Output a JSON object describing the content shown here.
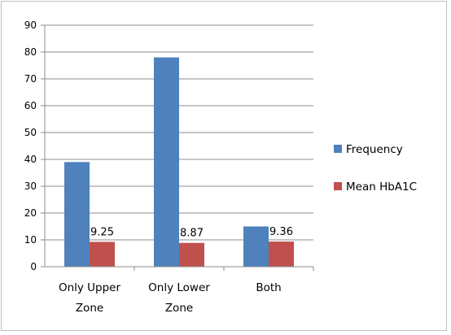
{
  "chart_data": {
    "type": "bar",
    "categories": [
      "Only Upper Zone",
      "Only Lower Zone",
      "Both"
    ],
    "category_lines": [
      [
        "Only Upper",
        "Zone"
      ],
      [
        "Only Lower",
        "Zone"
      ],
      [
        "Both"
      ]
    ],
    "series": [
      {
        "name": "Frequency",
        "values": [
          39,
          78,
          15
        ],
        "color": "#4F81BD",
        "data_labels": null
      },
      {
        "name": "Mean HbA1C",
        "values": [
          9.25,
          8.87,
          9.36
        ],
        "color": "#C0504D",
        "data_labels": [
          "9.25",
          "8.87",
          "9.36"
        ]
      }
    ],
    "ylim": [
      0,
      90
    ],
    "y_ticks": [
      0,
      10,
      20,
      30,
      40,
      50,
      60,
      70,
      80,
      90
    ],
    "grid": true,
    "legend_position": "right",
    "title": "",
    "xlabel": "",
    "ylabel": ""
  }
}
